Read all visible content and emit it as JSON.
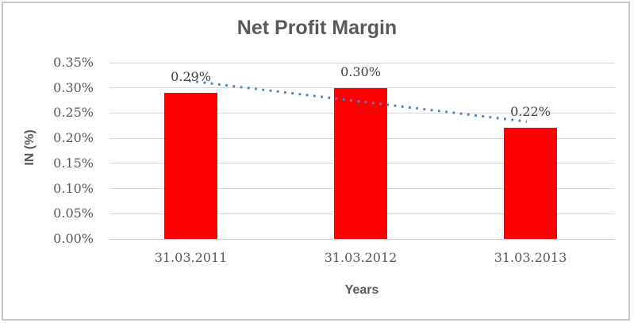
{
  "chart_data": {
    "type": "bar",
    "title": "Net Profit Margin",
    "xlabel": "Years",
    "ylabel": "IN (%)",
    "categories": [
      "31.03.2011",
      "31.03.2012",
      "31.03.2013"
    ],
    "values": [
      0.29,
      0.3,
      0.22
    ],
    "data_labels": [
      "0.29%",
      "0.30%",
      "0.22%"
    ],
    "yticks": [
      "0.00%",
      "0.05%",
      "0.10%",
      "0.15%",
      "0.20%",
      "0.25%",
      "0.30%",
      "0.35%"
    ],
    "ylim": [
      0,
      0.35
    ],
    "grid": true,
    "legend": "none",
    "bar_color": "#ff0000",
    "trendline": {
      "type": "linear",
      "style": "dotted",
      "color": "#4e82c4",
      "start_value": 0.314,
      "end_value": 0.233
    },
    "colors": {
      "title_text": "#595959",
      "axis_text": "#595959",
      "data_label_text": "#404040",
      "gridline": "#d9d9d9",
      "axis_line": "#cccccc",
      "frame_border": "#c6c6c6",
      "background": "#ffffff"
    }
  }
}
